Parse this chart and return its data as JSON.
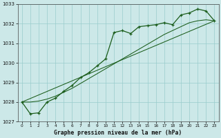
{
  "title": "Graphe pression niveau de la mer (hPa)",
  "bg_color": "#cce8e8",
  "grid_color": "#99cccc",
  "line_color": "#1a5c1a",
  "x_labels": [
    "0",
    "1",
    "2",
    "3",
    "4",
    "5",
    "6",
    "7",
    "8",
    "9",
    "10",
    "11",
    "12",
    "13",
    "14",
    "15",
    "16",
    "17",
    "18",
    "19",
    "20",
    "21",
    "22",
    "23"
  ],
  "series_main": [
    1028.0,
    1027.4,
    1027.45,
    1028.0,
    1028.2,
    1028.55,
    1028.85,
    1029.25,
    1029.5,
    1029.85,
    1030.2,
    1031.55,
    1031.65,
    1031.5,
    1031.85,
    1031.9,
    1031.95,
    1032.05,
    1031.95,
    1032.45,
    1032.55,
    1032.75,
    1032.65,
    1032.15
  ],
  "series_smooth": [
    1028.0,
    1028.0,
    1028.05,
    1028.15,
    1028.3,
    1028.5,
    1028.7,
    1028.95,
    1029.2,
    1029.45,
    1029.7,
    1029.95,
    1030.2,
    1030.45,
    1030.7,
    1030.95,
    1031.2,
    1031.45,
    1031.65,
    1031.85,
    1032.05,
    1032.15,
    1032.2,
    1032.15
  ],
  "trend_x": [
    0,
    23
  ],
  "trend_y": [
    1028.0,
    1032.15
  ],
  "ylim": [
    1027.0,
    1033.0
  ],
  "yticks": [
    1027,
    1028,
    1029,
    1030,
    1031,
    1032,
    1033
  ],
  "xlim_min": -0.5,
  "xlim_max": 23.5
}
